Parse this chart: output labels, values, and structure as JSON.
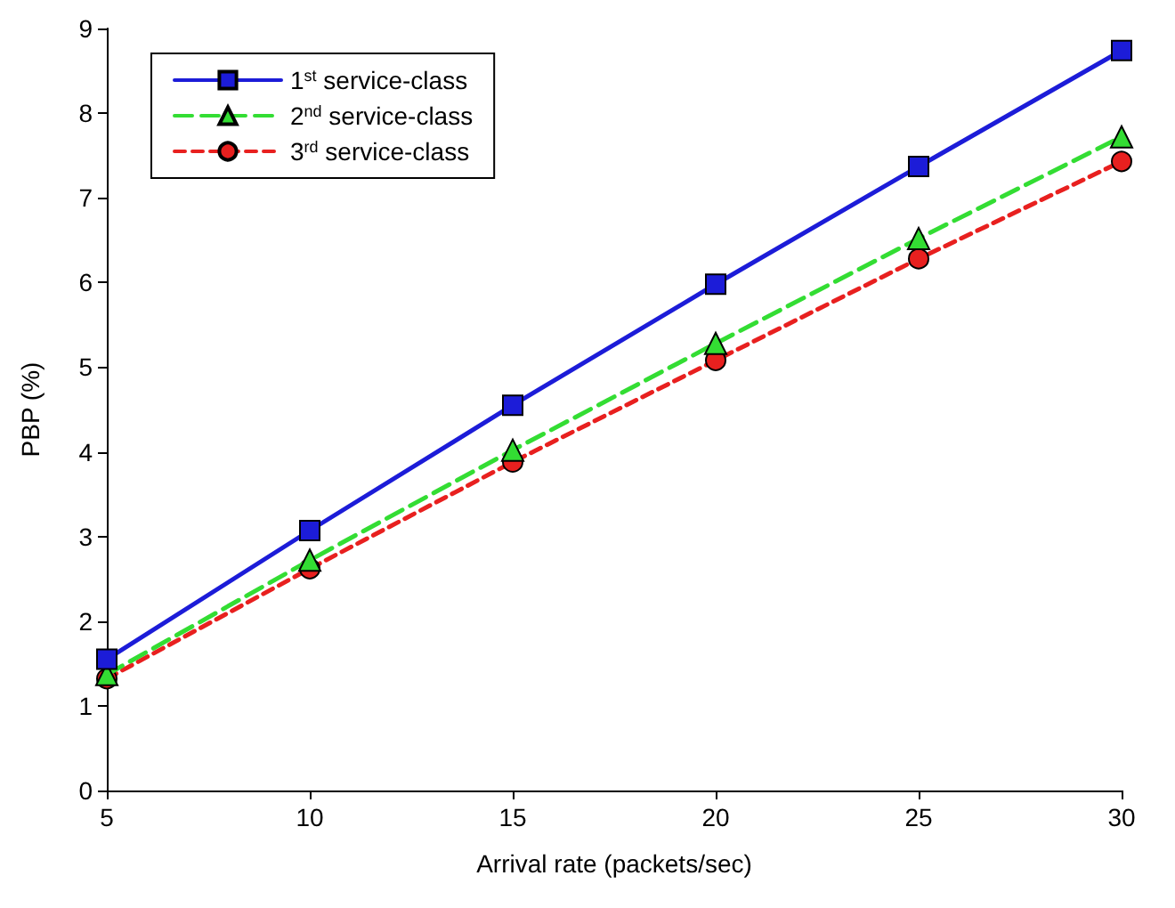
{
  "chart_data": {
    "type": "line",
    "xlabel": "Arrival rate (packets/sec)",
    "ylabel": "PBP (%)",
    "x": [
      5,
      10,
      15,
      20,
      25,
      30
    ],
    "xlim": [
      5,
      30
    ],
    "xticks": [
      5,
      10,
      15,
      20,
      25,
      30
    ],
    "ylim": [
      0,
      9
    ],
    "yticks": [
      0,
      1,
      2,
      3,
      4,
      5,
      6,
      7,
      8,
      9
    ],
    "grid": false,
    "legend": "top left",
    "series": [
      {
        "name": "1$^{st}$ service-class",
        "color": "#1c1cd8",
        "marker": "square",
        "line_style": "solid",
        "values": [
          1.55,
          3.07,
          4.55,
          5.98,
          7.37,
          8.74
        ]
      },
      {
        "name": "2$^{nd}$ service-class",
        "color": "#33dd33",
        "marker": "triangle",
        "line_style": "dashed",
        "values": [
          1.37,
          2.72,
          4.02,
          5.28,
          6.52,
          7.72
        ]
      },
      {
        "name": "3$^{rd}$ service-class",
        "color": "#e8201f",
        "marker": "circle",
        "line_style": "dashed",
        "values": [
          1.32,
          2.62,
          3.88,
          5.08,
          6.28,
          7.43
        ]
      }
    ]
  }
}
